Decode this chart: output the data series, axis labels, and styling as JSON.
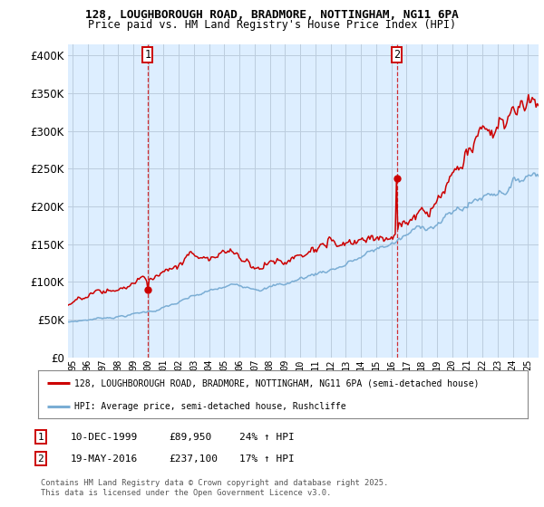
{
  "title1": "128, LOUGHBOROUGH ROAD, BRADMORE, NOTTINGHAM, NG11 6PA",
  "title2": "Price paid vs. HM Land Registry's House Price Index (HPI)",
  "ytick_vals": [
    0,
    50000,
    100000,
    150000,
    200000,
    250000,
    300000,
    350000,
    400000
  ],
  "ylim": [
    0,
    415000
  ],
  "xlim_start": 1994.7,
  "xlim_end": 2025.7,
  "sale1_year": 1999.94,
  "sale1_price": 89950,
  "sale2_year": 2016.37,
  "sale2_price": 237100,
  "red_color": "#cc0000",
  "blue_color": "#7aadd4",
  "bg_plot_color": "#ddeeff",
  "bg_color": "#ffffff",
  "grid_color": "#bbccdd",
  "legend_label_red": "128, LOUGHBOROUGH ROAD, BRADMORE, NOTTINGHAM, NG11 6PA (semi-detached house)",
  "legend_label_blue": "HPI: Average price, semi-detached house, Rushcliffe",
  "sale1_date": "10-DEC-1999",
  "sale1_price_str": "£89,950",
  "sale1_pct": "24% ↑ HPI",
  "sale2_date": "19-MAY-2016",
  "sale2_price_str": "£237,100",
  "sale2_pct": "17% ↑ HPI",
  "footer": "Contains HM Land Registry data © Crown copyright and database right 2025.\nThis data is licensed under the Open Government Licence v3.0.",
  "xtick_years": [
    1995,
    1996,
    1997,
    1998,
    1999,
    2000,
    2001,
    2002,
    2003,
    2004,
    2005,
    2006,
    2007,
    2008,
    2009,
    2010,
    2011,
    2012,
    2013,
    2014,
    2015,
    2016,
    2017,
    2018,
    2019,
    2020,
    2021,
    2022,
    2023,
    2024,
    2025
  ]
}
